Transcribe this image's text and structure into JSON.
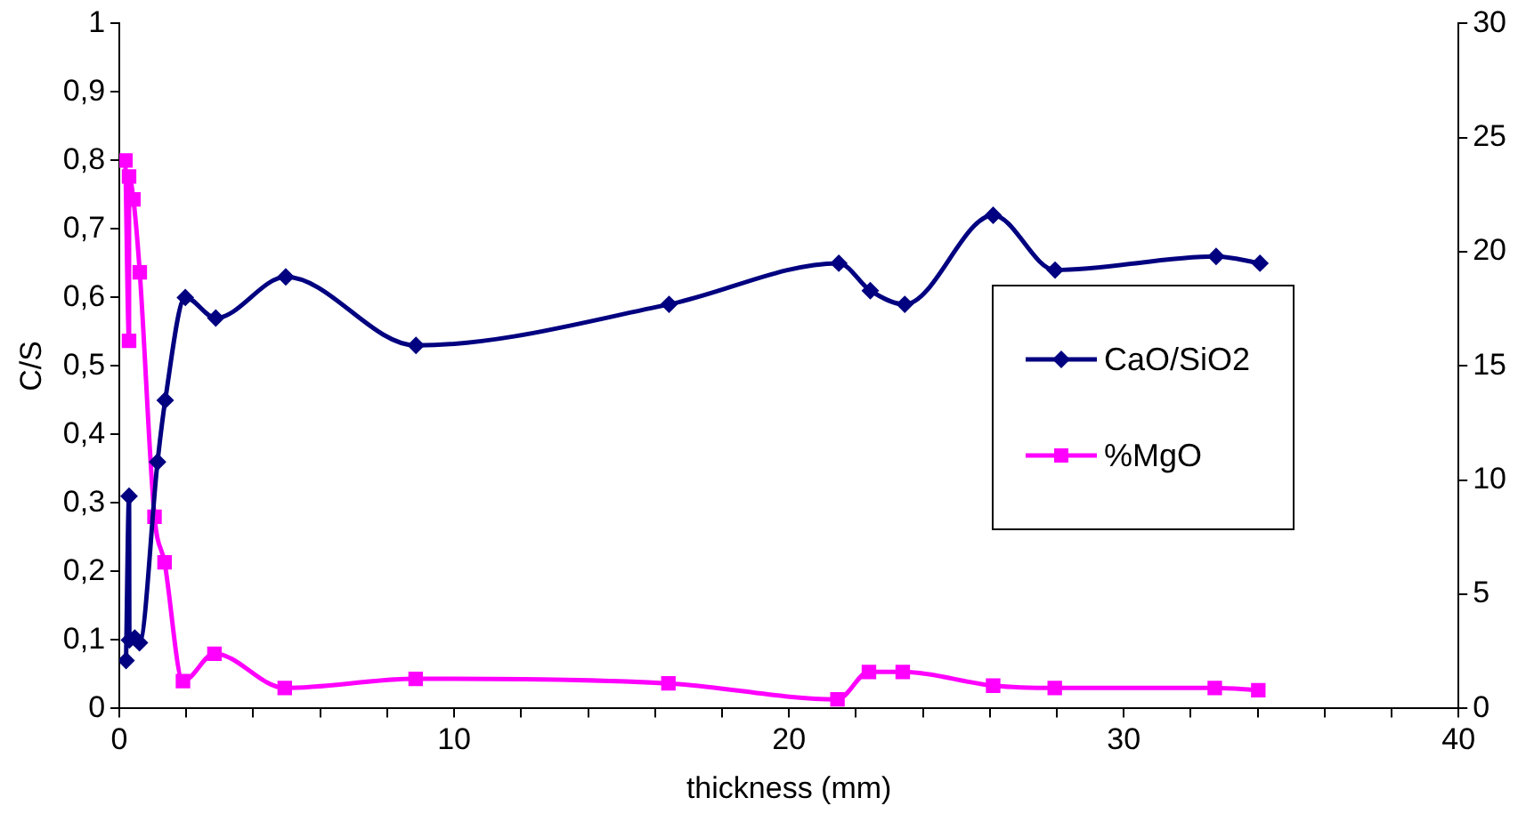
{
  "chart_data": {
    "type": "line",
    "xlabel": "thickness (mm)",
    "ylabel": "C/S",
    "legend": "right",
    "xlim": [
      0,
      40
    ],
    "xticks": [
      0,
      {
        "value": 2,
        "label": null
      },
      {
        "value": 4,
        "label": null
      },
      {
        "value": 6,
        "label": null
      },
      {
        "value": 8,
        "label": null
      },
      10,
      {
        "value": 12,
        "label": null
      },
      {
        "value": 14,
        "label": null
      },
      {
        "value": 16,
        "label": null
      },
      {
        "value": 18,
        "label": null
      },
      20,
      {
        "value": 22,
        "label": null
      },
      {
        "value": 24,
        "label": null
      },
      {
        "value": 26,
        "label": null
      },
      {
        "value": 28,
        "label": null
      },
      30,
      {
        "value": 32,
        "label": null
      },
      {
        "value": 34,
        "label": null
      },
      {
        "value": 36,
        "label": null
      },
      {
        "value": 38,
        "label": null
      },
      40
    ],
    "ylim": [
      0,
      1
    ],
    "yticks": [
      0,
      {
        "value": 0.1,
        "label": "0,1"
      },
      {
        "value": 0.2,
        "label": "0,2"
      },
      {
        "value": 0.3,
        "label": "0,3"
      },
      {
        "value": 0.4,
        "label": "0,4"
      },
      {
        "value": 0.5,
        "label": "0,5"
      },
      {
        "value": 0.6,
        "label": "0,6"
      },
      {
        "value": 0.7,
        "label": "0,7"
      },
      {
        "value": 0.8,
        "label": "0,8"
      },
      {
        "value": 0.9,
        "label": "0,9"
      },
      1
    ],
    "y2lim": [
      0,
      30
    ],
    "y2ticks": [
      0,
      5,
      10,
      15,
      20,
      25,
      30
    ],
    "series": [
      {
        "name": "CaO/SiO2",
        "color": "#000080",
        "marker": "diamond",
        "x": [
          0.2,
          0.29,
          0.3,
          0.46,
          0.6,
          1.14,
          1.37,
          1.97,
          2.88,
          4.97,
          8.86,
          16.42,
          21.49,
          22.43,
          23.46,
          26.1,
          27.95,
          32.76,
          34.07
        ],
        "values": [
          0.07,
          0.31,
          0.1,
          0.103,
          0.096,
          0.36,
          0.45,
          0.6,
          0.57,
          0.63,
          0.53,
          0.59,
          0.65,
          0.61,
          0.59,
          0.72,
          0.64,
          0.66,
          0.65
        ]
      },
      {
        "name": "%MgO",
        "color": "#ff00ff",
        "marker": "square",
        "axis": "y2",
        "x": [
          0.18,
          0.29,
          0.29,
          0.42,
          0.61,
          1.05,
          1.35,
          1.9,
          2.84,
          4.94,
          8.85,
          16.4,
          21.45,
          22.39,
          23.4,
          26.1,
          27.94,
          32.72,
          34.02
        ],
        "values": [
          24,
          16.1,
          23.3,
          22.3,
          19.1,
          8.4,
          6.4,
          1.2,
          2.4,
          0.9,
          1.3,
          1.1,
          0.4,
          1.6,
          1.6,
          1.0,
          0.9,
          0.9,
          0.8
        ]
      }
    ]
  }
}
